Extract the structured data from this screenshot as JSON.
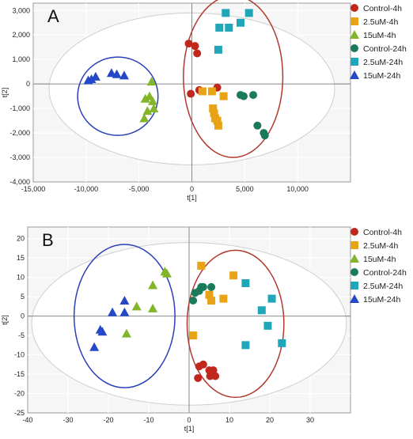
{
  "legend_labels": [
    "Control-4h",
    "2.5uM-4h",
    "15uM-4h",
    "Control-24h",
    "2.5uM-24h",
    "15uM-24h"
  ],
  "colors": {
    "Control-4h": "#c0281e",
    "2.5uM-4h": "#e8a317",
    "15uM-4h": "#82b52a",
    "Control-24h": "#1a7a5a",
    "2.5uM-24h": "#1fa6b8",
    "15uM-24h": "#2448c8",
    "ellipse_blue": "#2a3fb8",
    "ellipse_red": "#b03a2e"
  },
  "chart_data": [
    {
      "type": "scatter",
      "panel_label": "A",
      "xlabel": "t[1]",
      "ylabel": "t[2]",
      "xlim": [
        -15000,
        15000
      ],
      "ylim": [
        -4000,
        3300
      ],
      "xticks": [
        -15000,
        -10000,
        -5000,
        0,
        5000,
        10000
      ],
      "yticks": [
        -4000,
        -3000,
        -2000,
        -1000,
        0,
        1000,
        2000,
        3000
      ],
      "xtick_labels": [
        "-15,000",
        "-10,000",
        "-5,000",
        "0",
        "5,000",
        "10,000"
      ],
      "ytick_labels": [
        "-4,000",
        "-3,000",
        "-2,000",
        "-1,000",
        "0",
        "1,000",
        "2,000",
        "3,000"
      ],
      "series": [
        {
          "name": "Control-4h",
          "marker": "circle",
          "points": [
            [
              -300,
              1650
            ],
            [
              300,
              1550
            ],
            [
              500,
              1250
            ],
            [
              2400,
              -150
            ],
            [
              -100,
              -400
            ],
            [
              700,
              -250
            ]
          ]
        },
        {
          "name": "2.5uM-4h",
          "marker": "square",
          "points": [
            [
              1000,
              -300
            ],
            [
              1900,
              -300
            ],
            [
              3000,
              -500
            ],
            [
              2000,
              -1000
            ],
            [
              2100,
              -1200
            ],
            [
              2200,
              -1400
            ],
            [
              2400,
              -1500
            ],
            [
              2500,
              -1700
            ]
          ]
        },
        {
          "name": "15uM-4h",
          "marker": "triangle",
          "points": [
            [
              -3800,
              100
            ],
            [
              -4000,
              -500
            ],
            [
              -4400,
              -600
            ],
            [
              -3700,
              -700
            ],
            [
              -3600,
              -1000
            ],
            [
              -4200,
              -1100
            ],
            [
              -4500,
              -1400
            ]
          ]
        },
        {
          "name": "Control-24h",
          "marker": "circle",
          "points": [
            [
              4600,
              -450
            ],
            [
              4900,
              -500
            ],
            [
              5800,
              -450
            ],
            [
              6200,
              -1700
            ],
            [
              6800,
              -2000
            ],
            [
              6900,
              -2100
            ]
          ]
        },
        {
          "name": "2.5uM-24h",
          "marker": "square",
          "points": [
            [
              3200,
              2900
            ],
            [
              2600,
              2300
            ],
            [
              3500,
              2300
            ],
            [
              5400,
              2900
            ],
            [
              4600,
              2500
            ],
            [
              2500,
              1400
            ]
          ]
        },
        {
          "name": "15uM-24h",
          "marker": "triangle",
          "points": [
            [
              -9500,
              200
            ],
            [
              -9100,
              300
            ],
            [
              -7600,
              450
            ],
            [
              -7100,
              400
            ],
            [
              -6400,
              350
            ],
            [
              -9800,
              150
            ]
          ]
        }
      ],
      "ellipses": [
        {
          "cx": 0,
          "cy": -200,
          "rx": 13500,
          "ry": 3100,
          "color": "outer"
        },
        {
          "cx": -7000,
          "cy": -500,
          "rx": 3800,
          "ry": 1600,
          "color": "ellipse_blue"
        },
        {
          "cx": 3900,
          "cy": 300,
          "rx": 4700,
          "ry": 3300,
          "color": "ellipse_red"
        }
      ]
    },
    {
      "type": "scatter",
      "panel_label": "B",
      "xlabel": "t[1]",
      "ylabel": "t[2]",
      "xlim": [
        -40,
        40
      ],
      "ylim": [
        -25,
        23
      ],
      "xticks": [
        -40,
        -30,
        -20,
        -10,
        0,
        10,
        20,
        30
      ],
      "yticks": [
        -25,
        -20,
        -15,
        -10,
        -5,
        0,
        5,
        10,
        15,
        20
      ],
      "xtick_labels": [
        "-40",
        "-30",
        "-20",
        "-10",
        "0",
        "10",
        "20",
        "30"
      ],
      "ytick_labels": [
        "-25",
        "-20",
        "-15",
        "-10",
        "-5",
        "0",
        "5",
        "10",
        "15",
        "20"
      ],
      "series": [
        {
          "name": "Control-4h",
          "marker": "circle",
          "points": [
            [
              2.5,
              -13
            ],
            [
              3.5,
              -12.5
            ],
            [
              5,
              -14
            ],
            [
              6,
              -14
            ],
            [
              6.5,
              -15.5
            ],
            [
              2.2,
              -16
            ],
            [
              5.2,
              -15.5
            ]
          ]
        },
        {
          "name": "2.5uM-4h",
          "marker": "square",
          "points": [
            [
              3,
              13
            ],
            [
              11,
              10.5
            ],
            [
              5,
              5.5
            ],
            [
              5.5,
              4
            ],
            [
              8.5,
              4.5
            ],
            [
              1,
              -5
            ]
          ]
        },
        {
          "name": "15uM-4h",
          "marker": "triangle",
          "points": [
            [
              -6,
              11.5
            ],
            [
              -5.5,
              11
            ],
            [
              -9,
              8
            ],
            [
              -9,
              2
            ],
            [
              -13,
              2.5
            ],
            [
              -15.5,
              -4.5
            ]
          ]
        },
        {
          "name": "Control-24h",
          "marker": "circle",
          "points": [
            [
              3,
              7.5
            ],
            [
              3.5,
              7.5
            ],
            [
              5.5,
              7.5
            ],
            [
              1.5,
              6
            ],
            [
              2.5,
              6.5
            ],
            [
              1,
              4
            ]
          ]
        },
        {
          "name": "2.5uM-24h",
          "marker": "square",
          "points": [
            [
              14,
              8.5
            ],
            [
              18,
              1.5
            ],
            [
              20.5,
              4.5
            ],
            [
              19.5,
              -2.5
            ],
            [
              23,
              -7
            ],
            [
              14,
              -7.5
            ]
          ]
        },
        {
          "name": "15uM-24h",
          "marker": "triangle",
          "points": [
            [
              -16,
              4
            ],
            [
              -16,
              1
            ],
            [
              -19,
              1
            ],
            [
              -22,
              -3.5
            ],
            [
              -21.5,
              -4
            ],
            [
              -23.5,
              -8
            ]
          ]
        }
      ],
      "ellipses": [
        {
          "cx": 0,
          "cy": -2,
          "rx": 39,
          "ry": 21,
          "color": "outer"
        },
        {
          "cx": -16,
          "cy": 0,
          "rx": 12.5,
          "ry": 18.5,
          "color": "ellipse_blue"
        },
        {
          "cx": 11.5,
          "cy": -2,
          "rx": 12,
          "ry": 19,
          "color": "ellipse_red"
        }
      ]
    }
  ]
}
